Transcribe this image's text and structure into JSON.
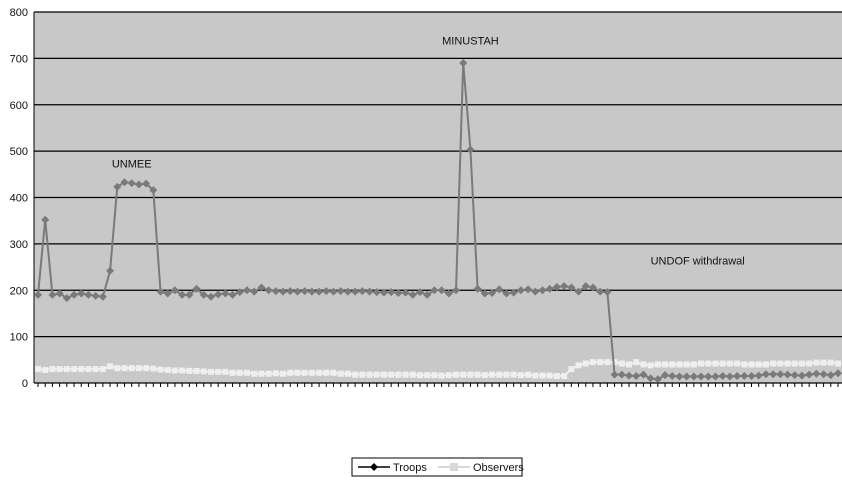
{
  "chart_data": {
    "type": "line",
    "ylim": [
      0,
      800
    ],
    "yticks": [
      0,
      100,
      200,
      300,
      400,
      500,
      600,
      700,
      800
    ],
    "grid": true,
    "legend_position": "bottom-center",
    "colors": {
      "plot_background": "#c8c8c8",
      "troops": "#7a7a7a",
      "observers": "#efefef",
      "gridline": "#000000"
    },
    "series": [
      {
        "name": "Troops",
        "marker": "diamond",
        "values": [
          190,
          352,
          190,
          193,
          183,
          190,
          193,
          190,
          188,
          186,
          242,
          423,
          433,
          431,
          428,
          430,
          416,
          197,
          193,
          200,
          190,
          190,
          203,
          190,
          186,
          191,
          193,
          190,
          196,
          200,
          197,
          206,
          200,
          198,
          197,
          198,
          197,
          198,
          197,
          197,
          198,
          197,
          198,
          197,
          197,
          198,
          197,
          196,
          195,
          196,
          194,
          195,
          190,
          196,
          190,
          200,
          200,
          193,
          200,
          690,
          503,
          203,
          193,
          194,
          202,
          193,
          195,
          200,
          202,
          197,
          200,
          203,
          207,
          209,
          206,
          197,
          209,
          206,
          197,
          196,
          18,
          18,
          16,
          15,
          18,
          10,
          8,
          17,
          15,
          14,
          14,
          14,
          14,
          14,
          14,
          15,
          14,
          15,
          15,
          15,
          16,
          19,
          19,
          19,
          18,
          17,
          16,
          18,
          20,
          19,
          17,
          21
        ]
      },
      {
        "name": "Observers",
        "marker": "square",
        "values": [
          30,
          28,
          30,
          30,
          30,
          30,
          30,
          30,
          30,
          30,
          36,
          32,
          32,
          32,
          32,
          32,
          31,
          29,
          28,
          27,
          27,
          26,
          26,
          25,
          24,
          24,
          24,
          22,
          22,
          22,
          20,
          20,
          20,
          21,
          20,
          22,
          22,
          22,
          22,
          22,
          22,
          22,
          20,
          20,
          18,
          18,
          18,
          18,
          18,
          18,
          18,
          18,
          18,
          17,
          17,
          17,
          16,
          17,
          18,
          18,
          18,
          18,
          17,
          18,
          18,
          18,
          18,
          17,
          18,
          16,
          16,
          16,
          15,
          15,
          30,
          38,
          42,
          45,
          45,
          45,
          45,
          42,
          40,
          45,
          40,
          38,
          40,
          40,
          40,
          40,
          40,
          40,
          42,
          42,
          42,
          42,
          42,
          42,
          40,
          40,
          40,
          40,
          42,
          42,
          42,
          42,
          42,
          42,
          44,
          44,
          44,
          42
        ]
      }
    ],
    "annotations": [
      {
        "text": "UNMEE",
        "index": 13,
        "value": 465
      },
      {
        "text": "MINUSTAH",
        "index": 60,
        "value": 730
      },
      {
        "text": "UNDOF withdrawal",
        "index": 85,
        "value": 255
      }
    ]
  }
}
